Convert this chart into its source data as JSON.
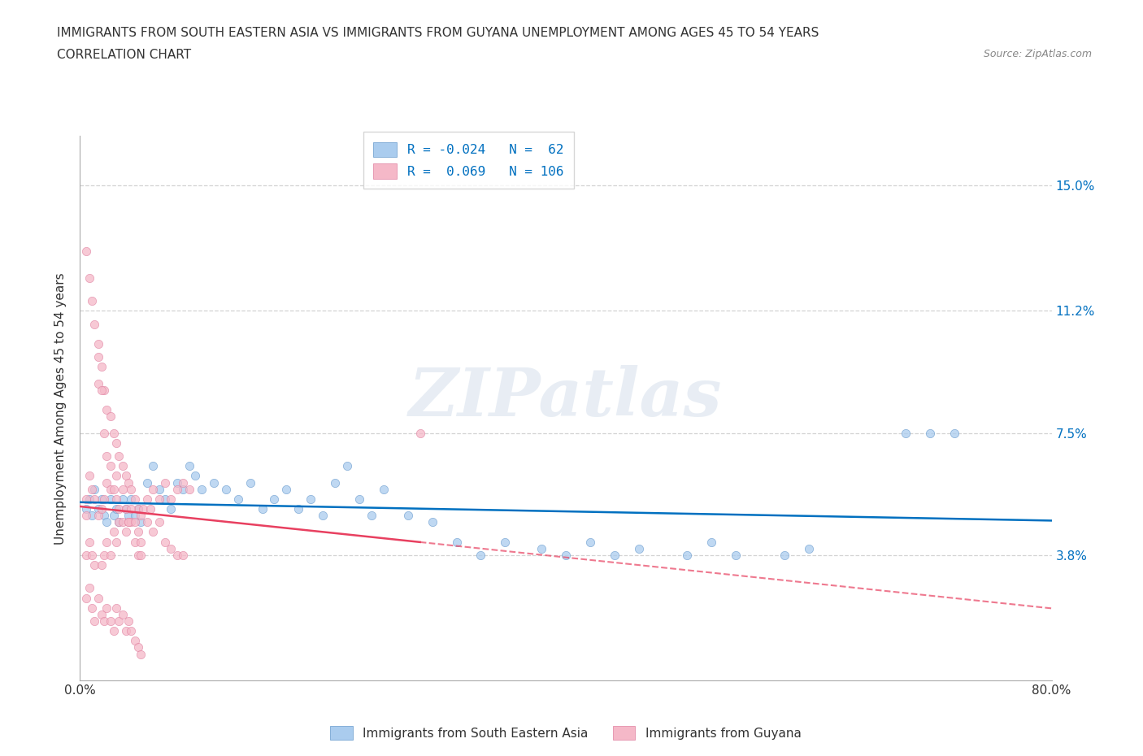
{
  "title_line1": "IMMIGRANTS FROM SOUTH EASTERN ASIA VS IMMIGRANTS FROM GUYANA UNEMPLOYMENT AMONG AGES 45 TO 54 YEARS",
  "title_line2": "CORRELATION CHART",
  "source_text": "Source: ZipAtlas.com",
  "ylabel": "Unemployment Among Ages 45 to 54 years",
  "xmin": 0.0,
  "xmax": 0.8,
  "ymin": 0.0,
  "ymax": 0.165,
  "yticks": [
    0.038,
    0.075,
    0.112,
    0.15
  ],
  "ytick_labels": [
    "3.8%",
    "7.5%",
    "11.2%",
    "15.0%"
  ],
  "blue_x": [
    0.005,
    0.008,
    0.01,
    0.012,
    0.015,
    0.018,
    0.02,
    0.022,
    0.025,
    0.028,
    0.03,
    0.032,
    0.035,
    0.038,
    0.04,
    0.042,
    0.045,
    0.048,
    0.05,
    0.055,
    0.06,
    0.065,
    0.07,
    0.075,
    0.08,
    0.085,
    0.09,
    0.095,
    0.1,
    0.11,
    0.12,
    0.13,
    0.14,
    0.15,
    0.16,
    0.17,
    0.18,
    0.19,
    0.2,
    0.21,
    0.22,
    0.23,
    0.24,
    0.25,
    0.27,
    0.29,
    0.31,
    0.33,
    0.35,
    0.38,
    0.4,
    0.42,
    0.44,
    0.46,
    0.5,
    0.52,
    0.54,
    0.58,
    0.6,
    0.68,
    0.7,
    0.72
  ],
  "blue_y": [
    0.052,
    0.055,
    0.05,
    0.058,
    0.052,
    0.055,
    0.05,
    0.048,
    0.055,
    0.05,
    0.052,
    0.048,
    0.055,
    0.052,
    0.05,
    0.055,
    0.05,
    0.052,
    0.048,
    0.06,
    0.065,
    0.058,
    0.055,
    0.052,
    0.06,
    0.058,
    0.065,
    0.062,
    0.058,
    0.06,
    0.058,
    0.055,
    0.06,
    0.052,
    0.055,
    0.058,
    0.052,
    0.055,
    0.05,
    0.06,
    0.065,
    0.055,
    0.05,
    0.058,
    0.05,
    0.048,
    0.042,
    0.038,
    0.042,
    0.04,
    0.038,
    0.042,
    0.038,
    0.04,
    0.038,
    0.042,
    0.038,
    0.038,
    0.04,
    0.075,
    0.075,
    0.075
  ],
  "pink_x": [
    0.005,
    0.005,
    0.005,
    0.008,
    0.008,
    0.01,
    0.01,
    0.012,
    0.012,
    0.015,
    0.015,
    0.015,
    0.018,
    0.018,
    0.018,
    0.02,
    0.02,
    0.02,
    0.022,
    0.022,
    0.022,
    0.025,
    0.025,
    0.025,
    0.028,
    0.028,
    0.03,
    0.03,
    0.03,
    0.032,
    0.032,
    0.035,
    0.035,
    0.038,
    0.038,
    0.04,
    0.04,
    0.042,
    0.042,
    0.045,
    0.045,
    0.048,
    0.048,
    0.05,
    0.05,
    0.052,
    0.055,
    0.058,
    0.06,
    0.065,
    0.07,
    0.075,
    0.08,
    0.085,
    0.09,
    0.005,
    0.008,
    0.01,
    0.012,
    0.015,
    0.018,
    0.02,
    0.022,
    0.025,
    0.028,
    0.03,
    0.032,
    0.035,
    0.038,
    0.04,
    0.042,
    0.045,
    0.048,
    0.05,
    0.055,
    0.06,
    0.065,
    0.07,
    0.075,
    0.08,
    0.085,
    0.005,
    0.008,
    0.01,
    0.012,
    0.015,
    0.018,
    0.02,
    0.022,
    0.025,
    0.028,
    0.03,
    0.032,
    0.035,
    0.038,
    0.04,
    0.042,
    0.045,
    0.048,
    0.05,
    0.28
  ],
  "pink_y": [
    0.13,
    0.05,
    0.038,
    0.122,
    0.042,
    0.115,
    0.038,
    0.108,
    0.035,
    0.102,
    0.09,
    0.05,
    0.095,
    0.052,
    0.035,
    0.088,
    0.055,
    0.038,
    0.082,
    0.06,
    0.042,
    0.08,
    0.058,
    0.038,
    0.075,
    0.045,
    0.072,
    0.062,
    0.042,
    0.068,
    0.048,
    0.065,
    0.048,
    0.062,
    0.045,
    0.06,
    0.048,
    0.058,
    0.048,
    0.055,
    0.042,
    0.052,
    0.038,
    0.05,
    0.038,
    0.052,
    0.055,
    0.052,
    0.058,
    0.055,
    0.06,
    0.055,
    0.058,
    0.06,
    0.058,
    0.055,
    0.062,
    0.058,
    0.055,
    0.098,
    0.088,
    0.075,
    0.068,
    0.065,
    0.058,
    0.055,
    0.052,
    0.058,
    0.052,
    0.048,
    0.052,
    0.048,
    0.045,
    0.042,
    0.048,
    0.045,
    0.048,
    0.042,
    0.04,
    0.038,
    0.038,
    0.025,
    0.028,
    0.022,
    0.018,
    0.025,
    0.02,
    0.018,
    0.022,
    0.018,
    0.015,
    0.022,
    0.018,
    0.02,
    0.015,
    0.018,
    0.015,
    0.012,
    0.01,
    0.008,
    0.075
  ],
  "trend_line_color_blue": "#0070c0",
  "trend_line_color_pink": "#e84060",
  "grid_color": "#c8c8c8",
  "watermark": "ZIPatlas",
  "background_color": "#ffffff",
  "label_color": "#0070c0",
  "text_color": "#333333",
  "source_color": "#888888"
}
